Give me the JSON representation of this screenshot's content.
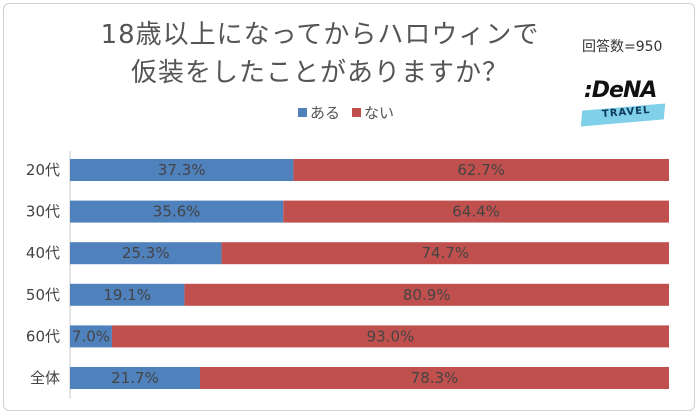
{
  "title_line1": "18歳以上になってからハロウィンで",
  "title_line2": "仮装をしたことがありますか？",
  "respondents": "回答数=950",
  "logo": {
    "main": ":DeNA",
    "sub": "TRAVEL"
  },
  "colors": {
    "yes": "#4f81bd",
    "no": "#c0504d"
  },
  "chart_data": {
    "type": "bar",
    "orientation": "horizontal",
    "stacked": true,
    "categories": [
      "20代",
      "30代",
      "40代",
      "50代",
      "60代",
      "全体"
    ],
    "series": [
      {
        "name": "ある",
        "values": [
          37.3,
          35.6,
          25.3,
          19.1,
          7.0,
          21.7
        ],
        "labels": [
          "37.3%",
          "35.6%",
          "25.3%",
          "19.1%",
          "7.0%",
          "21.7%"
        ]
      },
      {
        "name": "ない",
        "values": [
          62.7,
          64.4,
          74.7,
          80.9,
          93.0,
          78.3
        ],
        "labels": [
          "62.7%",
          "64.4%",
          "74.7%",
          "80.9%",
          "93.0%",
          "78.3%"
        ]
      }
    ],
    "xlim": [
      0,
      100
    ],
    "legend": "top-center"
  }
}
